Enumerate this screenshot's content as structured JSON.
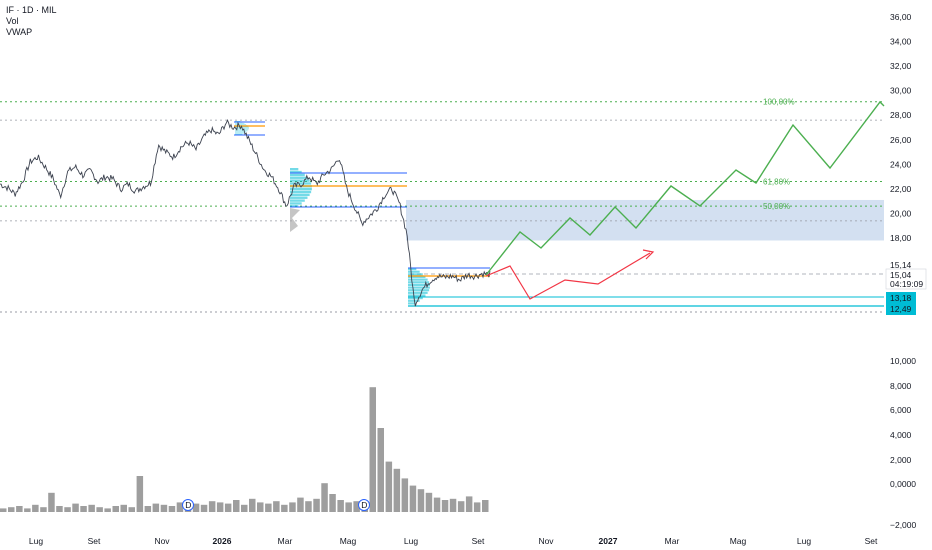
{
  "legend": {
    "symbol": "IF · 1D · MIL",
    "vol": "Vol",
    "vwap": "VWAP"
  },
  "colors": {
    "price_line": "#3d4350",
    "fib": "#4caf50",
    "green_path": "#4caf50",
    "red_path": "#f23645",
    "orange": "#ff9800",
    "blue_line": "#2962ff",
    "cyan": "#00bcd4",
    "zone": "#bcd0ea",
    "volume": "#9e9e9e"
  },
  "chart_data": [
    {
      "type": "line",
      "panel": "price",
      "y_axis_ticks": [
        "36,00",
        "34,00",
        "32,00",
        "30,00",
        "28,00",
        "26,00",
        "24,00",
        "22,00",
        "20,00",
        "18,00"
      ],
      "ylim": [
        12.0,
        36.5
      ],
      "x_axis_ticks": [
        "Lug",
        "Set",
        "Nov",
        "2026",
        "Mar",
        "Mag",
        "Lug",
        "Set",
        "Nov",
        "2027",
        "Mar",
        "Mag",
        "Lug",
        "Set"
      ],
      "series": [
        {
          "values": [
            22.4,
            22.1,
            21.6,
            22.6,
            24.2,
            24.6,
            23.8,
            22.9,
            21.4,
            23.4,
            23.8,
            23.1,
            23.5,
            22.6,
            23.0,
            22.8,
            22.0,
            22.4,
            21.8,
            22.2,
            22.5,
            25.6,
            25.0,
            24.6,
            25.4,
            25.8,
            25.2,
            26.2,
            26.8,
            26.4,
            27.4,
            27.0,
            27.2,
            26.0,
            24.8,
            23.6,
            23.0,
            22.0,
            20.6,
            22.2,
            22.4,
            23.0,
            22.4,
            23.2,
            23.6,
            24.6,
            22.0,
            20.6,
            19.2,
            19.8,
            20.4,
            21.5,
            22.0,
            20.8,
            18.3,
            12.6,
            13.8,
            14.5,
            14.9,
            14.8,
            14.9,
            14.6,
            15.0,
            14.9,
            15.1,
            15.04
          ]
        }
      ],
      "current_price": "15,04",
      "price_tag": "15,14",
      "countdown": "04:19:09",
      "level_tags": [
        "13,18",
        "12,49"
      ],
      "fib_levels": [
        {
          "label": "100,00%",
          "value": 29.1
        },
        {
          "label": "61,80%",
          "value": 22.6
        },
        {
          "label": "50,00%",
          "value": 20.6
        }
      ],
      "gray_levels": [
        27.6,
        19.4
      ]
    },
    {
      "type": "bar",
      "panel": "volume",
      "y_axis_ticks": [
        "10,000",
        "8,000",
        "6,000",
        "4,000",
        "2,000",
        "0,0000",
        "−2,000",
        "0"
      ],
      "values": [
        0.3,
        0.4,
        0.5,
        0.3,
        0.6,
        0.4,
        1.6,
        0.5,
        0.4,
        0.7,
        0.5,
        0.6,
        0.4,
        0.3,
        0.5,
        0.6,
        0.4,
        3.0,
        0.5,
        0.7,
        0.6,
        0.5,
        0.8,
        1.0,
        0.7,
        0.6,
        0.9,
        0.8,
        0.7,
        1.0,
        0.6,
        1.1,
        0.8,
        0.7,
        0.9,
        0.6,
        0.8,
        1.2,
        0.9,
        1.1,
        2.4,
        1.5,
        1.0,
        0.8,
        0.9,
        0.7,
        10.4,
        7.0,
        4.2,
        3.6,
        2.8,
        2.2,
        1.9,
        1.6,
        1.2,
        1.0,
        1.1,
        0.9,
        1.3,
        0.8,
        1.0
      ],
      "ylim": [
        0,
        11.0
      ]
    }
  ]
}
